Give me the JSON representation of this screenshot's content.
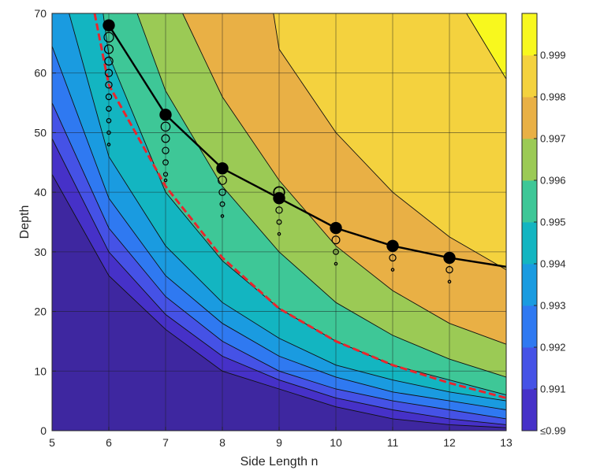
{
  "chart_data": {
    "type": "contour",
    "title": "",
    "xlabel": "Side Length n",
    "ylabel": "Depth",
    "xlim": [
      5,
      13
    ],
    "ylim": [
      0,
      70
    ],
    "grid": true,
    "x_ticks": [
      "5",
      "6",
      "7",
      "8",
      "9",
      "10",
      "11",
      "12",
      "13"
    ],
    "y_ticks": [
      "0",
      "10",
      "20",
      "30",
      "40",
      "50",
      "60",
      "70"
    ],
    "colorbar": {
      "labels": [
        "≤0.99",
        "0.991",
        "0.992",
        "0.993",
        "0.994",
        "0.995",
        "0.996",
        "0.997",
        "0.998",
        "0.999"
      ],
      "levels": [
        0.99,
        0.991,
        0.992,
        0.993,
        0.994,
        0.995,
        0.996,
        0.997,
        0.998,
        0.999,
        1.0
      ],
      "colors": [
        "#3e27a0",
        "#4631c8",
        "#4552e6",
        "#2f79f1",
        "#1a9be0",
        "#13b5c1",
        "#3ec797",
        "#9bca55",
        "#e9b045",
        "#f4d23e",
        "#f8f81e"
      ]
    },
    "contour_boundaries": [
      {
        "level": 0.991,
        "points": [
          [
            5,
            43
          ],
          [
            6,
            26
          ],
          [
            7,
            17
          ],
          [
            8,
            10
          ],
          [
            9,
            7
          ],
          [
            10,
            4
          ],
          [
            11,
            2
          ],
          [
            12,
            1
          ],
          [
            13,
            0.5
          ]
        ]
      },
      {
        "level": 0.992,
        "points": [
          [
            5,
            49
          ],
          [
            6,
            30
          ],
          [
            7,
            19.5
          ],
          [
            8,
            12.5
          ],
          [
            9,
            8.5
          ],
          [
            10,
            5.5
          ],
          [
            11,
            3.5
          ],
          [
            12,
            2
          ],
          [
            13,
            1
          ]
        ]
      },
      {
        "level": 0.993,
        "points": [
          [
            5,
            55
          ],
          [
            6,
            34
          ],
          [
            7,
            22.5
          ],
          [
            8,
            15
          ],
          [
            9,
            10
          ],
          [
            10,
            7
          ],
          [
            11,
            5
          ],
          [
            12,
            3.5
          ],
          [
            13,
            2
          ]
        ]
      },
      {
        "level": 0.994,
        "points": [
          [
            5,
            64.5
          ],
          [
            6,
            39
          ],
          [
            7,
            26
          ],
          [
            8,
            18
          ],
          [
            9,
            12.5
          ],
          [
            10,
            9
          ],
          [
            11,
            6.5
          ],
          [
            12,
            5
          ],
          [
            13,
            3.5
          ]
        ]
      },
      {
        "level": 0.995,
        "points": [
          [
            5.3,
            70
          ],
          [
            6,
            46
          ],
          [
            7,
            31
          ],
          [
            8,
            21.5
          ],
          [
            9,
            15.5
          ],
          [
            10,
            11
          ],
          [
            11,
            8.5
          ],
          [
            12,
            6.5
          ],
          [
            13,
            5
          ]
        ]
      },
      {
        "level": 0.996,
        "points": [
          [
            5.9,
            70
          ],
          [
            6,
            63
          ],
          [
            7,
            40
          ],
          [
            8,
            28.5
          ],
          [
            9,
            20.5
          ],
          [
            10,
            15
          ],
          [
            11,
            11
          ],
          [
            12,
            8.5
          ],
          [
            13,
            6
          ]
        ]
      },
      {
        "level": 0.997,
        "points": [
          [
            6.5,
            70
          ],
          [
            7,
            57
          ],
          [
            8,
            41
          ],
          [
            9,
            30
          ],
          [
            10,
            21.5
          ],
          [
            11,
            16
          ],
          [
            12,
            12
          ],
          [
            13,
            9
          ]
        ]
      },
      {
        "level": 0.998,
        "points": [
          [
            7.3,
            70
          ],
          [
            8,
            56
          ],
          [
            9,
            42
          ],
          [
            10,
            31
          ],
          [
            11,
            23.5
          ],
          [
            12,
            18
          ],
          [
            13,
            14.5
          ]
        ]
      },
      {
        "level": 0.999,
        "points": [
          [
            8.9,
            70
          ],
          [
            9,
            64
          ],
          [
            10,
            50
          ],
          [
            11,
            40
          ],
          [
            12,
            32.5
          ],
          [
            13,
            27
          ]
        ]
      },
      {
        "level": 1.0,
        "points": [
          [
            12.3,
            70
          ],
          [
            13,
            59
          ]
        ]
      }
    ],
    "series": [
      {
        "name": "red dashed threshold",
        "style": "dashed",
        "color": "#e8262d",
        "points": [
          [
            5.75,
            70
          ],
          [
            6,
            58
          ],
          [
            7,
            41
          ],
          [
            8,
            29
          ],
          [
            9,
            20.5
          ],
          [
            10,
            15
          ],
          [
            11,
            11
          ],
          [
            12,
            8
          ],
          [
            13,
            5.5
          ]
        ]
      },
      {
        "name": "black optimal curve",
        "style": "solid",
        "color": "#000000",
        "points": [
          [
            6,
            68
          ],
          [
            7,
            53
          ],
          [
            8,
            44
          ],
          [
            9,
            39
          ],
          [
            10,
            34
          ],
          [
            11,
            31
          ],
          [
            12,
            29
          ],
          [
            13,
            27.5
          ]
        ]
      }
    ],
    "sample_points": [
      {
        "x": 6,
        "depths": [
          68,
          66,
          64,
          62,
          60,
          58,
          56,
          54,
          52,
          50,
          48
        ]
      },
      {
        "x": 7,
        "depths": [
          53,
          51,
          49,
          47,
          45,
          43,
          42
        ]
      },
      {
        "x": 8,
        "depths": [
          44,
          42,
          40,
          38,
          36
        ]
      },
      {
        "x": 9,
        "depths": [
          40,
          39,
          37,
          35,
          33
        ]
      },
      {
        "x": 10,
        "depths": [
          34,
          32,
          30,
          28
        ]
      },
      {
        "x": 11,
        "depths": [
          31,
          29,
          27
        ]
      },
      {
        "x": 12,
        "depths": [
          29,
          27,
          25
        ]
      }
    ],
    "marker_points": [
      {
        "x": 6,
        "y": 68,
        "filled": true
      },
      {
        "x": 7,
        "y": 53,
        "filled": true
      },
      {
        "x": 8,
        "y": 44,
        "filled": true
      },
      {
        "x": 9,
        "y": 40,
        "filled": false
      },
      {
        "x": 9,
        "y": 39,
        "filled": true
      },
      {
        "x": 10,
        "y": 34,
        "filled": true
      },
      {
        "x": 11,
        "y": 31,
        "filled": true
      },
      {
        "x": 12,
        "y": 29,
        "filled": true
      }
    ]
  }
}
